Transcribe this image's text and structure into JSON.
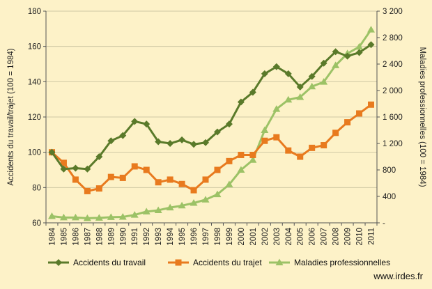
{
  "chart_data": {
    "type": "line",
    "x": [
      "1984",
      "1985",
      "1986",
      "1987",
      "1988",
      "1989",
      "1990",
      "1991",
      "1992",
      "1993",
      "1994",
      "1995",
      "1996",
      "1997",
      "1998",
      "1999",
      "2000",
      "2001",
      "2002",
      "2003",
      "2004",
      "2005",
      "2006",
      "2007",
      "2008",
      "2009",
      "2010",
      "2011"
    ],
    "y_left": {
      "label": "Accidents du travail/trajet  (100 = 1984)",
      "lim": [
        60,
        180
      ],
      "ticks": [
        "60",
        "80",
        "100",
        "120",
        "140",
        "160",
        "180"
      ]
    },
    "y_right": {
      "label": "Maladies professionnelles (100 = 1984)",
      "lim": [
        0,
        3200
      ],
      "ticks": [
        "-",
        "400",
        "800",
        "1 200",
        "1 600",
        "2 000",
        "2 400",
        "2 800",
        "3 200"
      ]
    },
    "series": [
      {
        "name": "Accidents du travail",
        "axis": "left",
        "color": "#5a7a2a",
        "marker": "diamond",
        "values": [
          100,
          90.5,
          91,
          90.5,
          97.5,
          106.5,
          109.5,
          117.5,
          116,
          106,
          105,
          107,
          104.5,
          105.5,
          111.5,
          116,
          128.5,
          134,
          144.5,
          148.5,
          144.5,
          137,
          143,
          150.5,
          157,
          154.5,
          156.5,
          161
        ]
      },
      {
        "name": "Accidents du trajet",
        "axis": "left",
        "color": "#e87a1e",
        "marker": "square",
        "values": [
          100,
          94,
          84.5,
          78,
          79.5,
          86,
          85.5,
          92,
          90,
          83,
          84.5,
          82,
          78.5,
          84.5,
          90,
          95,
          98.5,
          98.5,
          106.5,
          108.5,
          101,
          97.5,
          102.5,
          104,
          111,
          117,
          122,
          127
        ]
      },
      {
        "name": "Maladies professionnelles",
        "axis": "right",
        "color": "#9cc266",
        "marker": "triangle",
        "values": [
          100,
          80,
          80,
          70,
          75,
          85,
          90,
          120,
          170,
          190,
          230,
          260,
          300,
          350,
          430,
          580,
          800,
          950,
          1400,
          1720,
          1860,
          1900,
          2060,
          2130,
          2380,
          2560,
          2660,
          2920
        ]
      }
    ],
    "grid": "horizontal",
    "legend": "bottom",
    "annotation": "www.irdes.fr"
  }
}
